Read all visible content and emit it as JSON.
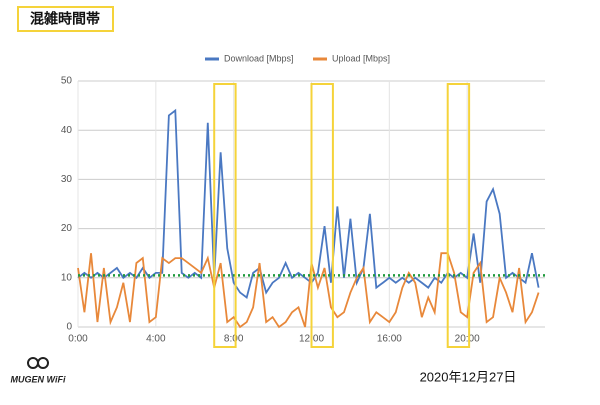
{
  "header": {
    "title": "混雑時間帯"
  },
  "footer": {
    "logo": "MUGEN WiFi",
    "date": "2020年12月27日"
  },
  "chart_data": {
    "type": "line",
    "x": [
      0,
      0.33,
      0.67,
      1,
      1.33,
      1.67,
      2,
      2.33,
      2.67,
      3,
      3.33,
      3.67,
      4,
      4.33,
      4.67,
      5,
      5.33,
      5.67,
      6,
      6.33,
      6.67,
      7,
      7.33,
      7.67,
      8,
      8.33,
      8.67,
      9,
      9.33,
      9.67,
      10,
      10.33,
      10.67,
      11,
      11.33,
      11.67,
      12,
      12.33,
      12.67,
      13,
      13.33,
      13.67,
      14,
      14.33,
      14.67,
      15,
      15.33,
      15.67,
      16,
      16.33,
      16.67,
      17,
      17.33,
      17.67,
      18,
      18.33,
      18.67,
      19,
      19.33,
      19.67,
      20,
      20.33,
      20.67,
      21,
      21.33,
      21.67,
      22,
      22.33,
      22.67,
      23,
      23.33,
      23.67
    ],
    "series": [
      {
        "name": "Download [Mbps]",
        "color": "#4a78c2",
        "values": [
          10,
          11,
          10,
          11,
          10,
          11,
          12,
          10,
          11,
          10,
          12,
          10,
          11,
          11,
          43,
          44,
          11,
          10,
          11,
          10,
          41.5,
          10,
          35.5,
          16,
          9,
          7,
          6,
          11,
          12,
          7,
          9,
          10,
          13,
          10,
          11,
          10,
          9,
          11,
          20.5,
          9,
          24.5,
          10,
          22,
          9,
          12,
          23,
          8,
          9,
          10,
          9,
          10,
          9,
          10,
          9,
          8,
          10,
          9,
          11,
          10,
          11,
          10,
          19,
          9,
          25.5,
          28,
          23,
          10,
          11,
          10,
          9,
          15,
          8
        ]
      },
      {
        "name": "Upload [Mbps]",
        "color": "#e8883a",
        "values": [
          12,
          3,
          15,
          1,
          12,
          1,
          4,
          9,
          1,
          13,
          14,
          1,
          2,
          14,
          13,
          14,
          14,
          13,
          12,
          11,
          14,
          8,
          13,
          1,
          2,
          0,
          1,
          4,
          13,
          1,
          2,
          0,
          1,
          3,
          4,
          0,
          13,
          8,
          12,
          4,
          2,
          3,
          7,
          10,
          12,
          1,
          3,
          2,
          1,
          3,
          8,
          11,
          9,
          2,
          6,
          3,
          15,
          15,
          11,
          3,
          2,
          11,
          13,
          1,
          2,
          10,
          7,
          3,
          12,
          1,
          3,
          7
        ]
      }
    ],
    "xlim": [
      0,
      24
    ],
    "xticks": [
      {
        "value": 0,
        "label": "0:00"
      },
      {
        "value": 4,
        "label": "4:00"
      },
      {
        "value": 8,
        "label": "8:00"
      },
      {
        "value": 12,
        "label": "12:00"
      },
      {
        "value": 16,
        "label": "16:00"
      },
      {
        "value": 20,
        "label": "20:00"
      }
    ],
    "ylim": [
      0,
      50
    ],
    "yticks": [
      0,
      10,
      20,
      30,
      40,
      50
    ],
    "grid": true,
    "reference_line": {
      "value": 10.5,
      "color": "#1f9a3c"
    },
    "highlight_ranges": [
      [
        7,
        8.1
      ],
      [
        12,
        13.1
      ],
      [
        19,
        20.1
      ]
    ],
    "highlight_color": "#f5d33a"
  }
}
